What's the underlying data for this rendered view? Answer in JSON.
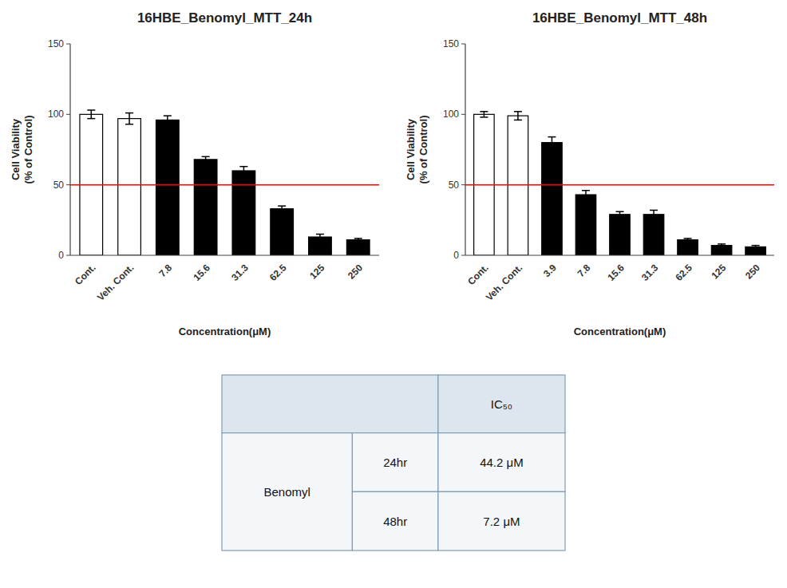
{
  "chart_data": [
    {
      "type": "bar",
      "title": "16HBE_Benomyl_MTT_24h",
      "categories": [
        "Cont.",
        "Veh. Cont.",
        "7.8",
        "15.6",
        "31.3",
        "62.5",
        "125",
        "250"
      ],
      "values": [
        100,
        97,
        96,
        68,
        60,
        33,
        13,
        11
      ],
      "errors": [
        3,
        4,
        3,
        2,
        3,
        2,
        2,
        1
      ],
      "colors": [
        "white",
        "white",
        "black",
        "black",
        "black",
        "black",
        "black",
        "black"
      ],
      "xlabel": "Concentration(μM)",
      "ylabel": "Cell Viability\n(% of Control)",
      "ylim": [
        0,
        150
      ],
      "yticks": [
        0,
        50,
        100,
        150
      ],
      "reference_line": {
        "value": 50,
        "color": "red"
      }
    },
    {
      "type": "bar",
      "title": "16HBE_Benomyl_MTT_48h",
      "categories": [
        "Cont.",
        "Veh. Cont.",
        "3.9",
        "7.8",
        "15.6",
        "31.3",
        "62.5",
        "125",
        "250"
      ],
      "values": [
        100,
        99,
        80,
        43,
        29,
        29,
        11,
        7,
        6
      ],
      "errors": [
        2,
        3,
        4,
        3,
        2,
        3,
        1,
        1,
        1
      ],
      "colors": [
        "white",
        "white",
        "black",
        "black",
        "black",
        "black",
        "black",
        "black",
        "black"
      ],
      "xlabel": "Concentration(μM)",
      "ylabel": "Cell Viability\n(% of Control)",
      "ylim": [
        0,
        150
      ],
      "yticks": [
        0,
        50,
        100,
        150
      ],
      "reference_line": {
        "value": 50,
        "color": "red"
      }
    },
    {
      "type": "table",
      "header": "IC₅₀",
      "row_label": "Benomyl",
      "rows": [
        [
          "24hr",
          "44.2 μM"
        ],
        [
          "48hr",
          "7.2 μM"
        ]
      ]
    }
  ]
}
